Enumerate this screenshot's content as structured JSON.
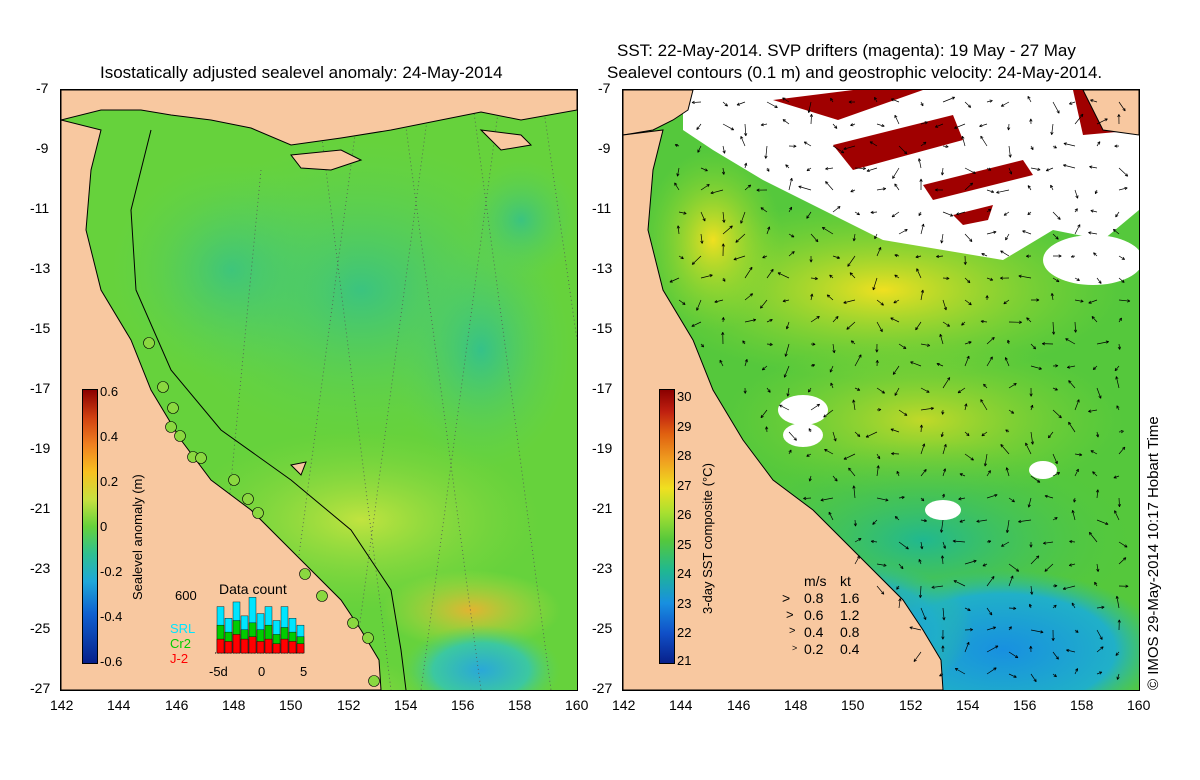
{
  "left_panel": {
    "title": "Isostatically adjusted sealevel anomaly: 24-May-2014",
    "colorbar_label": "Sealevel anomaly (m)",
    "colorbar_ticks": [
      "0.6",
      "0.4",
      "0.2",
      "0",
      "-0.2",
      "-0.4",
      "-0.6"
    ],
    "inset": {
      "title": "Data count",
      "ymax_label": "600",
      "x_ticks": [
        "-5d",
        "0",
        "5"
      ],
      "legend": [
        {
          "label": "SRL",
          "color": "#00e5ff"
        },
        {
          "label": "Cr2",
          "color": "#00cc00"
        },
        {
          "label": "J-2",
          "color": "#ff0000"
        }
      ],
      "bars": [
        {
          "srl": 2.0,
          "cr2": 1.2,
          "j2": 0.6
        },
        {
          "srl": 1.5,
          "cr2": 0.9,
          "j2": 0.5
        },
        {
          "srl": 2.2,
          "cr2": 1.4,
          "j2": 0.8
        },
        {
          "srl": 1.6,
          "cr2": 1.0,
          "j2": 0.6
        },
        {
          "srl": 2.4,
          "cr2": 1.3,
          "j2": 0.7
        },
        {
          "srl": 1.7,
          "cr2": 1.0,
          "j2": 0.5
        },
        {
          "srl": 2.0,
          "cr2": 1.2,
          "j2": 0.6
        },
        {
          "srl": 1.4,
          "cr2": 0.8,
          "j2": 0.4
        },
        {
          "srl": 2.0,
          "cr2": 1.1,
          "j2": 0.6
        },
        {
          "srl": 1.5,
          "cr2": 0.9,
          "j2": 0.5
        },
        {
          "srl": 1.2,
          "cr2": 0.7,
          "j2": 0.4
        }
      ]
    }
  },
  "right_panel": {
    "title_line1": "SST: 22-May-2014. SVP drifters (magenta): 19 May - 27 May",
    "title_line2": "Sealevel contours (0.1 m) and geostrophic velocity: 24-May-2014.",
    "colorbar_label": "3-day SST composite (°C)",
    "colorbar_ticks": [
      "30",
      "29",
      "28",
      "27",
      "26",
      "25",
      "24",
      "23",
      "22",
      "21"
    ],
    "velocity_legend": {
      "header_ms": "m/s",
      "header_kt": "kt",
      "rows": [
        {
          "ms": "0.8",
          "kt": "1.6"
        },
        {
          "ms": "0.6",
          "kt": "1.2"
        },
        {
          "ms": "0.4",
          "kt": "0.8"
        },
        {
          "ms": "0.2",
          "kt": "0.4"
        }
      ]
    },
    "credit": "© IMOS 29-May-2014 10:17 Hobart Time"
  },
  "axes": {
    "lat_ticks": [
      "-7",
      "-9",
      "-11",
      "-13",
      "-15",
      "-17",
      "-19",
      "-21",
      "-23",
      "-25",
      "-27"
    ],
    "lon_ticks": [
      "142",
      "144",
      "146",
      "148",
      "150",
      "152",
      "154",
      "156",
      "158",
      "160"
    ]
  },
  "colors": {
    "land": "#f8c8a0",
    "sla_background": "#66d23c",
    "sst_background": "#55c83c",
    "missing": "#ffffff"
  }
}
